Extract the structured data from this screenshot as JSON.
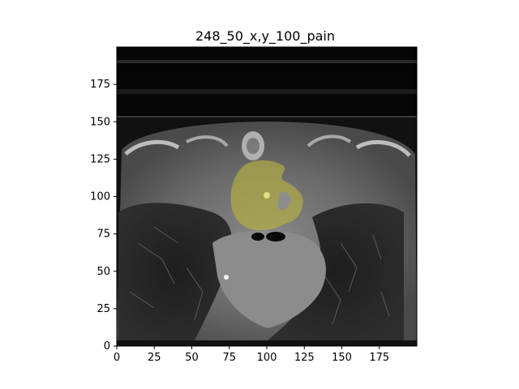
{
  "title": "248_50_x,y_100_pain",
  "axes": {
    "x_ticks": [
      "0",
      "25",
      "50",
      "75",
      "100",
      "125",
      "150",
      "175"
    ],
    "y_ticks": [
      "0",
      "25",
      "50",
      "75",
      "100",
      "125",
      "150",
      "175"
    ],
    "x_range": [
      0,
      200
    ],
    "y_range": [
      0,
      200
    ]
  },
  "image": {
    "description_hidden": "",
    "overlay_color": "#b8b040"
  }
}
